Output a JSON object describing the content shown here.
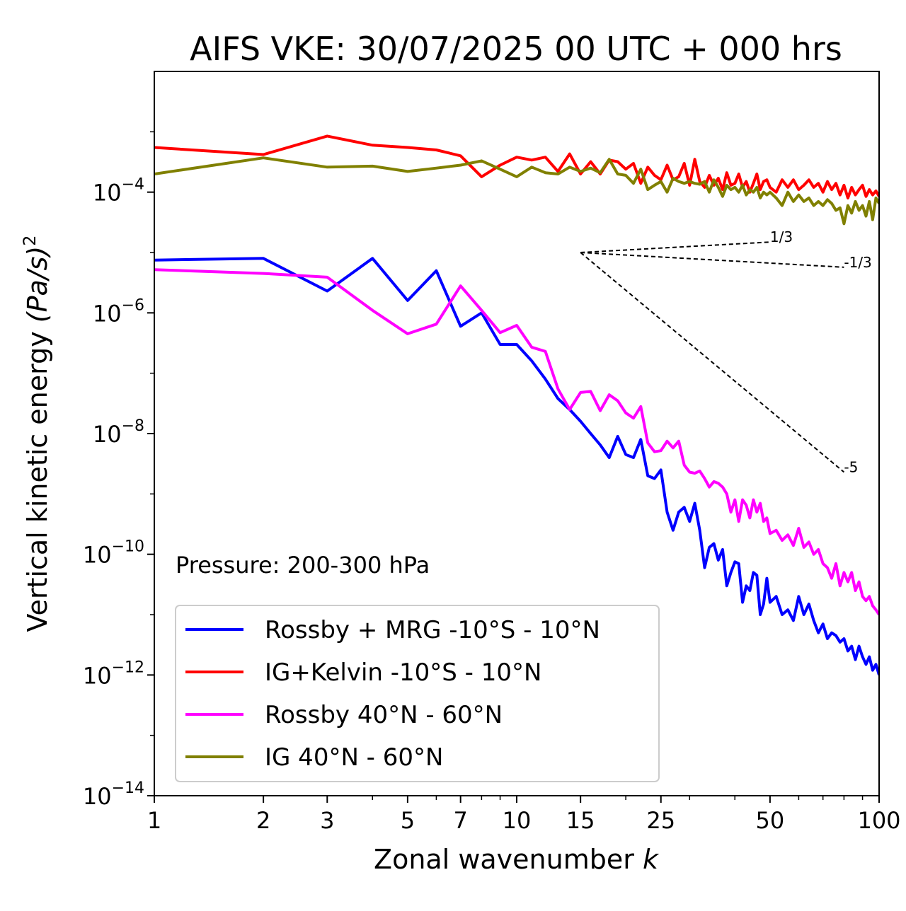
{
  "chart_data": {
    "type": "line",
    "title": "AIFS VKE: 30/07/2025 00 UTC + 000 hrs",
    "xlabel": "Zonal wavenumber",
    "xlabel_var": "k",
    "ylabel": "Vertical kinetic energy",
    "ylabel_unit": "(Pa/s)",
    "ylabel_unit_exp": "2",
    "x_scale": "log",
    "y_scale": "log",
    "xlim": [
      1,
      100
    ],
    "ylim": [
      1e-14,
      0.01
    ],
    "x_ticks": [
      1,
      2,
      3,
      5,
      7,
      10,
      15,
      25,
      50,
      100
    ],
    "x_tick_labels": [
      "1",
      "2",
      "3",
      "5",
      "7",
      "10",
      "15",
      "25",
      "50",
      "100"
    ],
    "y_ticks": [
      -14,
      -12,
      -10,
      -8,
      -6,
      -4
    ],
    "y_tick_base": "10",
    "y_tick_exponents": [
      "−14",
      "−12",
      "−10",
      "−8",
      "−6",
      "−4"
    ],
    "annotation": "Pressure: 200-300 hPa",
    "legend_position": "lower-left",
    "reference_slopes": [
      {
        "label": "1/3",
        "x": [
          15,
          50
        ],
        "y": [
          1e-05,
          1.49e-05
        ]
      },
      {
        "label": "-1/3",
        "x": [
          15,
          80
        ],
        "y": [
          1e-05,
          5.7e-06
        ]
      },
      {
        "label": "-5",
        "x": [
          15,
          80
        ],
        "y": [
          1e-05,
          2.3e-09
        ]
      }
    ],
    "series": [
      {
        "name": "Rossby + MRG -10°S - 10°N",
        "color": "#0000ff",
        "x": [
          1,
          2,
          3,
          4,
          5,
          6,
          7,
          8,
          9,
          10,
          11,
          12,
          13,
          14,
          15,
          16,
          17,
          18,
          19,
          20,
          21,
          22,
          23,
          24,
          25,
          26,
          27,
          28,
          29,
          30,
          31,
          32,
          33,
          34,
          35,
          36,
          37,
          38,
          39,
          40,
          41,
          42,
          43,
          44,
          45,
          46,
          47,
          48,
          49,
          50,
          52,
          54,
          56,
          58,
          60,
          62,
          64,
          66,
          68,
          70,
          72,
          74,
          76,
          78,
          80,
          82,
          84,
          86,
          88,
          90,
          92,
          94,
          96,
          98,
          100
        ],
        "y": [
          7.5e-06,
          8e-06,
          2.3e-06,
          8e-06,
          1.6e-06,
          5e-06,
          6e-07,
          1e-06,
          3e-07,
          3e-07,
          1.6e-07,
          8e-08,
          3.8e-08,
          2.5e-08,
          1.6e-08,
          1e-08,
          6.5e-09,
          4e-09,
          9e-09,
          4.5e-09,
          4e-09,
          8e-09,
          2e-09,
          1.8e-09,
          2.5e-09,
          5e-10,
          2.5e-10,
          5e-10,
          6e-10,
          3.5e-10,
          7e-10,
          2.5e-10,
          6e-11,
          1.3e-10,
          1.5e-10,
          8e-11,
          1.2e-10,
          3e-11,
          5e-11,
          7.5e-11,
          7e-11,
          1.6e-11,
          3e-11,
          2.5e-11,
          5e-11,
          4.5e-11,
          1e-11,
          1.5e-11,
          4e-11,
          1.6e-11,
          2e-11,
          1e-11,
          1.2e-11,
          8e-12,
          2e-11,
          1e-11,
          1.5e-11,
          8e-12,
          5e-12,
          7e-12,
          4e-12,
          5e-12,
          4.5e-12,
          3.5e-12,
          4e-12,
          2.5e-12,
          3e-12,
          1.8e-12,
          3e-12,
          2e-12,
          1.5e-12,
          2e-12,
          1.2e-12,
          1.5e-12,
          1e-12
        ]
      },
      {
        "name": "IG+Kelvin -10°S - 10°N",
        "color": "#ff0000",
        "x": [
          1,
          2,
          3,
          4,
          5,
          6,
          7,
          8,
          9,
          10,
          11,
          12,
          13,
          14,
          15,
          16,
          17,
          18,
          19,
          20,
          21,
          22,
          23,
          24,
          25,
          26,
          27,
          28,
          29,
          30,
          31,
          32,
          33,
          34,
          35,
          36,
          37,
          38,
          39,
          40,
          41,
          42,
          43,
          44,
          45,
          46,
          47,
          48,
          49,
          50,
          52,
          54,
          56,
          58,
          60,
          62,
          64,
          66,
          68,
          70,
          72,
          74,
          76,
          78,
          80,
          82,
          84,
          86,
          88,
          90,
          92,
          94,
          96,
          98,
          100
        ],
        "y": [
          0.00055,
          0.00042,
          0.00085,
          0.0006,
          0.00055,
          0.0005,
          0.0004,
          0.00018,
          0.00028,
          0.00038,
          0.00034,
          0.00038,
          0.00022,
          0.00043,
          0.0002,
          0.00032,
          0.0002,
          0.00034,
          0.00032,
          0.00024,
          0.0003,
          0.00014,
          0.00026,
          0.00019,
          0.00016,
          0.00028,
          0.00016,
          0.00018,
          0.0003,
          0.00013,
          0.00035,
          0.00015,
          0.00012,
          0.00019,
          0.00013,
          0.00017,
          0.00011,
          0.00021,
          0.00013,
          0.00014,
          0.0002,
          0.00012,
          0.00015,
          0.0001,
          0.00014,
          0.0002,
          0.00011,
          0.00015,
          0.00016,
          0.00012,
          0.0001,
          0.00016,
          0.00012,
          0.00016,
          0.00011,
          0.00013,
          0.00016,
          0.00012,
          0.00014,
          0.0001,
          0.00015,
          0.00011,
          0.00014,
          9e-05,
          0.00013,
          8e-05,
          0.00012,
          9e-05,
          0.00011,
          0.00013,
          8.5e-05,
          0.00011,
          9e-05,
          0.000105,
          8.5e-05
        ]
      },
      {
        "name": "Rossby 40°N - 60°N",
        "color": "#ff00ff",
        "x": [
          1,
          2,
          3,
          4,
          5,
          6,
          7,
          8,
          9,
          10,
          11,
          12,
          13,
          14,
          15,
          16,
          17,
          18,
          19,
          20,
          21,
          22,
          23,
          24,
          25,
          26,
          27,
          28,
          29,
          30,
          31,
          32,
          33,
          34,
          35,
          36,
          37,
          38,
          39,
          40,
          41,
          42,
          43,
          44,
          45,
          46,
          47,
          48,
          49,
          50,
          52,
          54,
          56,
          58,
          60,
          62,
          64,
          66,
          68,
          70,
          72,
          74,
          76,
          78,
          80,
          82,
          84,
          86,
          88,
          90,
          92,
          94,
          96,
          98,
          100
        ],
        "y": [
          5.2e-06,
          4.5e-06,
          3.9e-06,
          1.1e-06,
          4.5e-07,
          6.5e-07,
          2.8e-06,
          1.1e-06,
          4.7e-07,
          6.2e-07,
          2.7e-07,
          2.3e-07,
          5.5e-08,
          2.5e-08,
          4.8e-08,
          5e-08,
          2.4e-08,
          4.4e-08,
          3.5e-08,
          2.2e-08,
          1.8e-08,
          2.8e-08,
          7e-09,
          5e-09,
          5.2e-09,
          7.5e-09,
          5.8e-09,
          7.5e-09,
          3e-09,
          2.3e-09,
          2.2e-09,
          2.4e-09,
          1.8e-09,
          1.3e-09,
          1.6e-09,
          1.5e-09,
          1.3e-09,
          1e-09,
          5e-10,
          8e-10,
          3.5e-10,
          8e-10,
          6.5e-10,
          4e-10,
          8e-10,
          5e-10,
          7e-10,
          3.5e-10,
          4e-10,
          2.2e-10,
          2.5e-10,
          1.7e-10,
          2.1e-10,
          1.4e-10,
          2.7e-10,
          1.3e-10,
          1.6e-10,
          1e-10,
          1.2e-10,
          7e-11,
          6e-11,
          4e-11,
          7e-11,
          3e-11,
          5e-11,
          3.5e-11,
          5e-11,
          2.5e-11,
          3.5e-11,
          2e-11,
          1.7e-11,
          2e-11,
          1.4e-11,
          1.2e-11,
          1e-11
        ]
      },
      {
        "name": "IG 40°N - 60°N",
        "color": "#808000",
        "x": [
          1,
          2,
          3,
          4,
          5,
          6,
          7,
          8,
          9,
          10,
          11,
          12,
          13,
          14,
          15,
          16,
          17,
          18,
          19,
          20,
          21,
          22,
          23,
          24,
          25,
          26,
          27,
          28,
          29,
          30,
          31,
          32,
          33,
          34,
          35,
          36,
          37,
          38,
          39,
          40,
          41,
          42,
          43,
          44,
          45,
          46,
          47,
          48,
          49,
          50,
          52,
          54,
          56,
          58,
          60,
          62,
          64,
          66,
          68,
          70,
          72,
          74,
          76,
          78,
          80,
          82,
          84,
          86,
          88,
          90,
          92,
          94,
          96,
          98,
          100
        ],
        "y": [
          0.0002,
          0.00037,
          0.00026,
          0.00027,
          0.00022,
          0.00025,
          0.00028,
          0.00033,
          0.00024,
          0.00018,
          0.00026,
          0.00021,
          0.0002,
          0.00026,
          0.00022,
          0.00025,
          0.00021,
          0.00035,
          0.0002,
          0.00019,
          0.00014,
          0.00024,
          0.00011,
          0.00013,
          0.00015,
          0.0001,
          0.00017,
          0.00015,
          0.00014,
          0.00015,
          0.00014,
          0.000135,
          0.00015,
          0.0001,
          0.00016,
          0.00012,
          8.5e-05,
          0.00013,
          0.00011,
          0.00012,
          0.0001,
          0.00013,
          9e-05,
          0.00011,
          0.0001,
          0.00012,
          8e-05,
          0.0001,
          9e-05,
          0.0001,
          8e-05,
          6e-05,
          0.0001,
          7e-05,
          9e-05,
          7e-05,
          8e-05,
          6e-05,
          7e-05,
          6e-05,
          7.5e-05,
          6.5e-05,
          5e-05,
          5.5e-05,
          3e-05,
          6e-05,
          4.5e-05,
          7e-05,
          5e-05,
          6e-05,
          4e-05,
          7e-05,
          3.5e-05,
          8e-05,
          6.5e-05
        ]
      }
    ]
  }
}
